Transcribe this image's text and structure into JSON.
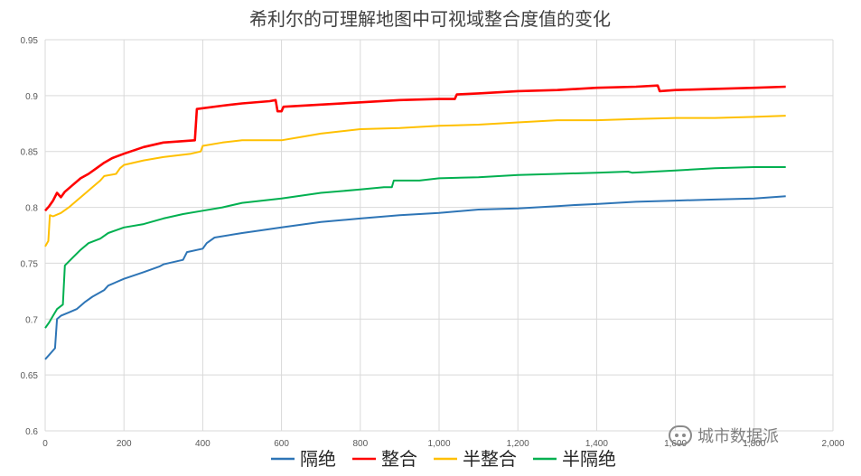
{
  "chart_data": {
    "type": "line",
    "title": "希利尔的可理解地图中可视域整合度值的变化",
    "xlabel": "",
    "ylabel": "",
    "xlim": [
      0,
      2000
    ],
    "ylim": [
      0.6,
      0.95
    ],
    "x_ticks": [
      "0",
      "200",
      "400",
      "600",
      "800",
      "1,000",
      "1,200",
      "1,400",
      "1,600",
      "1,800",
      "2,000"
    ],
    "y_ticks": [
      "0.6",
      "0.65",
      "0.7",
      "0.75",
      "0.8",
      "0.85",
      "0.9",
      "0.95"
    ],
    "grid": true,
    "legend_position": "bottom",
    "series": [
      {
        "name": "隔绝",
        "color": "#2e75b6",
        "points": [
          [
            0,
            0.664
          ],
          [
            10,
            0.668
          ],
          [
            25,
            0.674
          ],
          [
            30,
            0.7
          ],
          [
            40,
            0.703
          ],
          [
            60,
            0.706
          ],
          [
            80,
            0.709
          ],
          [
            100,
            0.715
          ],
          [
            120,
            0.72
          ],
          [
            150,
            0.726
          ],
          [
            160,
            0.73
          ],
          [
            200,
            0.736
          ],
          [
            250,
            0.742
          ],
          [
            290,
            0.747
          ],
          [
            300,
            0.749
          ],
          [
            350,
            0.753
          ],
          [
            360,
            0.76
          ],
          [
            400,
            0.763
          ],
          [
            410,
            0.768
          ],
          [
            430,
            0.773
          ],
          [
            500,
            0.777
          ],
          [
            600,
            0.782
          ],
          [
            700,
            0.787
          ],
          [
            800,
            0.79
          ],
          [
            900,
            0.793
          ],
          [
            1000,
            0.795
          ],
          [
            1100,
            0.798
          ],
          [
            1200,
            0.799
          ],
          [
            1300,
            0.801
          ],
          [
            1340,
            0.802
          ],
          [
            1400,
            0.803
          ],
          [
            1500,
            0.805
          ],
          [
            1600,
            0.806
          ],
          [
            1700,
            0.807
          ],
          [
            1800,
            0.808
          ],
          [
            1880,
            0.81
          ]
        ]
      },
      {
        "name": "整合",
        "color": "#ff0000",
        "points": [
          [
            0,
            0.797
          ],
          [
            10,
            0.801
          ],
          [
            20,
            0.806
          ],
          [
            30,
            0.813
          ],
          [
            40,
            0.809
          ],
          [
            50,
            0.814
          ],
          [
            70,
            0.82
          ],
          [
            90,
            0.826
          ],
          [
            110,
            0.83
          ],
          [
            130,
            0.835
          ],
          [
            150,
            0.84
          ],
          [
            170,
            0.844
          ],
          [
            200,
            0.848
          ],
          [
            250,
            0.854
          ],
          [
            300,
            0.858
          ],
          [
            380,
            0.86
          ],
          [
            385,
            0.888
          ],
          [
            450,
            0.891
          ],
          [
            500,
            0.893
          ],
          [
            570,
            0.895
          ],
          [
            585,
            0.896
          ],
          [
            590,
            0.886
          ],
          [
            600,
            0.886
          ],
          [
            605,
            0.89
          ],
          [
            700,
            0.892
          ],
          [
            800,
            0.894
          ],
          [
            900,
            0.896
          ],
          [
            1000,
            0.897
          ],
          [
            1040,
            0.897
          ],
          [
            1045,
            0.901
          ],
          [
            1100,
            0.902
          ],
          [
            1200,
            0.904
          ],
          [
            1300,
            0.905
          ],
          [
            1400,
            0.907
          ],
          [
            1500,
            0.908
          ],
          [
            1555,
            0.909
          ],
          [
            1560,
            0.904
          ],
          [
            1600,
            0.905
          ],
          [
            1700,
            0.906
          ],
          [
            1800,
            0.907
          ],
          [
            1880,
            0.908
          ]
        ]
      },
      {
        "name": "半整合",
        "color": "#ffc000",
        "points": [
          [
            0,
            0.765
          ],
          [
            8,
            0.77
          ],
          [
            12,
            0.793
          ],
          [
            20,
            0.792
          ],
          [
            40,
            0.795
          ],
          [
            60,
            0.8
          ],
          [
            80,
            0.806
          ],
          [
            100,
            0.812
          ],
          [
            120,
            0.818
          ],
          [
            140,
            0.824
          ],
          [
            150,
            0.828
          ],
          [
            180,
            0.83
          ],
          [
            190,
            0.835
          ],
          [
            200,
            0.838
          ],
          [
            250,
            0.842
          ],
          [
            300,
            0.845
          ],
          [
            370,
            0.848
          ],
          [
            395,
            0.85
          ],
          [
            400,
            0.855
          ],
          [
            450,
            0.858
          ],
          [
            500,
            0.86
          ],
          [
            600,
            0.86
          ],
          [
            650,
            0.863
          ],
          [
            700,
            0.866
          ],
          [
            800,
            0.87
          ],
          [
            900,
            0.871
          ],
          [
            1000,
            0.873
          ],
          [
            1100,
            0.874
          ],
          [
            1200,
            0.876
          ],
          [
            1300,
            0.878
          ],
          [
            1400,
            0.878
          ],
          [
            1500,
            0.879
          ],
          [
            1600,
            0.88
          ],
          [
            1700,
            0.88
          ],
          [
            1800,
            0.881
          ],
          [
            1880,
            0.882
          ]
        ]
      },
      {
        "name": "半隔绝",
        "color": "#00b050",
        "points": [
          [
            0,
            0.692
          ],
          [
            10,
            0.697
          ],
          [
            20,
            0.703
          ],
          [
            30,
            0.709
          ],
          [
            45,
            0.713
          ],
          [
            50,
            0.748
          ],
          [
            70,
            0.755
          ],
          [
            90,
            0.762
          ],
          [
            110,
            0.768
          ],
          [
            140,
            0.772
          ],
          [
            160,
            0.777
          ],
          [
            200,
            0.782
          ],
          [
            250,
            0.785
          ],
          [
            300,
            0.79
          ],
          [
            350,
            0.794
          ],
          [
            400,
            0.797
          ],
          [
            450,
            0.8
          ],
          [
            500,
            0.804
          ],
          [
            600,
            0.808
          ],
          [
            700,
            0.813
          ],
          [
            800,
            0.816
          ],
          [
            860,
            0.818
          ],
          [
            880,
            0.818
          ],
          [
            885,
            0.824
          ],
          [
            950,
            0.824
          ],
          [
            1000,
            0.826
          ],
          [
            1100,
            0.827
          ],
          [
            1200,
            0.829
          ],
          [
            1300,
            0.83
          ],
          [
            1400,
            0.831
          ],
          [
            1480,
            0.832
          ],
          [
            1490,
            0.831
          ],
          [
            1600,
            0.833
          ],
          [
            1700,
            0.835
          ],
          [
            1800,
            0.836
          ],
          [
            1880,
            0.836
          ]
        ]
      }
    ]
  },
  "watermark": {
    "text": "城市数据派",
    "icon": "wechat-icon"
  }
}
